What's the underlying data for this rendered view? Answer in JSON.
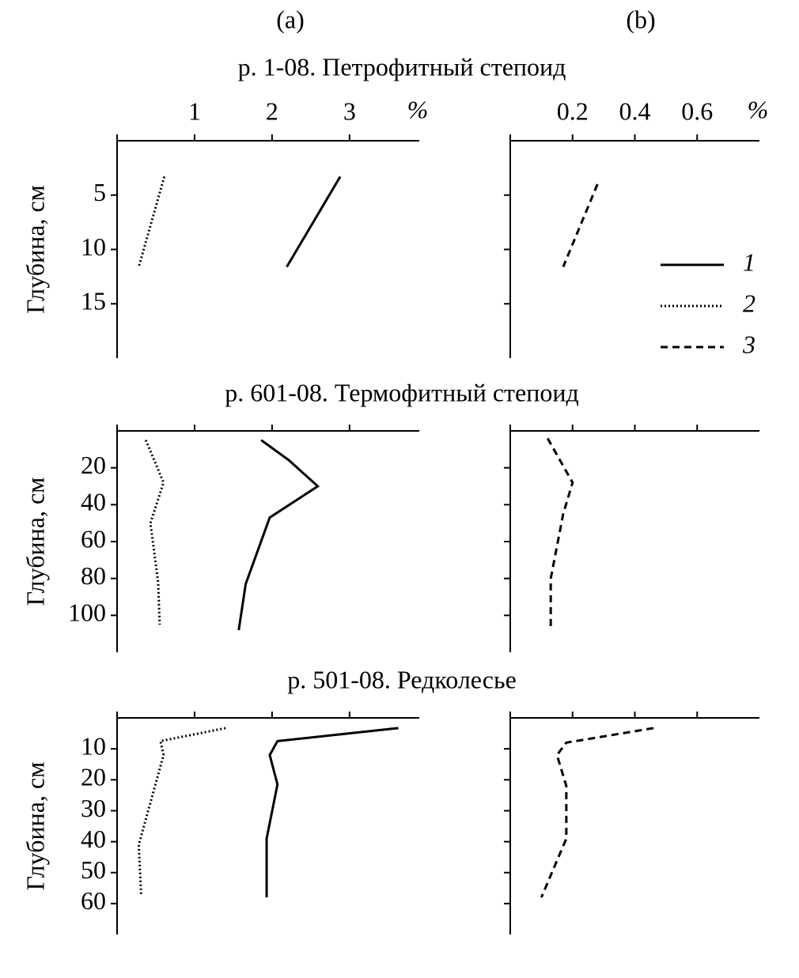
{
  "chart_data": [
    {
      "type": "line",
      "column_label": "(a)",
      "title": "р. 1-08. Петрофитный степоид",
      "ylabel": "Глубина, см",
      "xlabel": "%",
      "xlim": [
        0,
        3.9
      ],
      "xticks": [
        1,
        2,
        3
      ],
      "show_xtick_labels": true,
      "ylim": [
        0,
        20
      ],
      "yticks": [
        5,
        10,
        15
      ],
      "show_ytick_labels": true,
      "y_inverted": true,
      "series": [
        {
          "name": "1",
          "color": "#000000",
          "linestyle": "solid",
          "x": [
            2.88,
            2.19
          ],
          "y": [
            3.3,
            11.6
          ]
        },
        {
          "name": "2",
          "color": "#000000",
          "linestyle": "dotted",
          "x": [
            0.61,
            0.28
          ],
          "y": [
            3.3,
            11.6
          ]
        }
      ]
    },
    {
      "type": "line",
      "column_label": "(b)",
      "xlabel": "%",
      "xlim": [
        0,
        0.8
      ],
      "xticks": [
        0.2,
        0.4,
        0.6
      ],
      "show_xtick_labels": true,
      "ylim": [
        0,
        20
      ],
      "yticks": [
        5,
        10,
        15
      ],
      "show_ytick_labels": false,
      "y_inverted": true,
      "legend": "right",
      "series": [
        {
          "name": "3",
          "color": "#000000",
          "linestyle": "dashed",
          "x": [
            0.28,
            0.17
          ],
          "y": [
            4,
            11.6
          ]
        }
      ]
    },
    {
      "type": "line",
      "title": "р. 601-08. Термофитный степоид",
      "ylabel": "Глубина, см",
      "xlim": [
        0,
        3.9
      ],
      "xticks": [
        1,
        2,
        3
      ],
      "show_xtick_labels": false,
      "ylim": [
        0,
        120
      ],
      "yticks": [
        20,
        40,
        60,
        80,
        100
      ],
      "show_ytick_labels": true,
      "y_inverted": true,
      "series": [
        {
          "name": "1",
          "color": "#000000",
          "linestyle": "solid",
          "x": [
            1.86,
            2.22,
            2.59,
            1.97,
            1.66,
            1.57
          ],
          "y": [
            5,
            16,
            30,
            47,
            83,
            108
          ]
        },
        {
          "name": "2",
          "color": "#000000",
          "linestyle": "dotted",
          "x": [
            0.37,
            0.6,
            0.43,
            0.53,
            0.55
          ],
          "y": [
            5,
            28,
            50,
            82,
            105
          ]
        }
      ]
    },
    {
      "type": "line",
      "xlim": [
        0,
        0.8
      ],
      "xticks": [
        0.2,
        0.4,
        0.6
      ],
      "show_xtick_labels": false,
      "ylim": [
        0,
        120
      ],
      "yticks": [
        20,
        40,
        60,
        80,
        100
      ],
      "show_ytick_labels": false,
      "y_inverted": true,
      "series": [
        {
          "name": "3",
          "color": "#000000",
          "linestyle": "dashed",
          "x": [
            0.12,
            0.2,
            0.17,
            0.13,
            0.13
          ],
          "y": [
            4,
            28,
            45,
            80,
            107
          ]
        }
      ]
    },
    {
      "type": "line",
      "title": "р. 501-08. Редколесье",
      "ylabel": "Глубина, см",
      "xlim": [
        0,
        3.9
      ],
      "xticks": [
        1,
        2,
        3
      ],
      "show_xtick_labels": false,
      "ylim": [
        0,
        70
      ],
      "yticks": [
        10,
        20,
        30,
        40,
        50,
        60
      ],
      "show_ytick_labels": true,
      "y_inverted": true,
      "series": [
        {
          "name": "1",
          "color": "#000000",
          "linestyle": "solid",
          "x": [
            3.63,
            2.07,
            1.97,
            2.07,
            1.93,
            1.93
          ],
          "y": [
            3.3,
            7.5,
            12,
            21.5,
            39,
            58
          ]
        },
        {
          "name": "2",
          "color": "#000000",
          "linestyle": "dotted",
          "x": [
            1.4,
            0.56,
            0.6,
            0.28,
            0.31
          ],
          "y": [
            3.3,
            7.5,
            12,
            41,
            57
          ]
        }
      ]
    },
    {
      "type": "line",
      "xlim": [
        0,
        0.8
      ],
      "xticks": [
        0.2,
        0.4,
        0.6
      ],
      "show_xtick_labels": false,
      "ylim": [
        0,
        70
      ],
      "yticks": [
        10,
        20,
        30,
        40,
        50,
        60
      ],
      "show_ytick_labels": false,
      "y_inverted": true,
      "series": [
        {
          "name": "3",
          "color": "#000000",
          "linestyle": "dashed",
          "x": [
            0.46,
            0.18,
            0.15,
            0.18,
            0.18,
            0.1
          ],
          "y": [
            3.3,
            8,
            12,
            22,
            39,
            58
          ]
        }
      ]
    }
  ]
}
